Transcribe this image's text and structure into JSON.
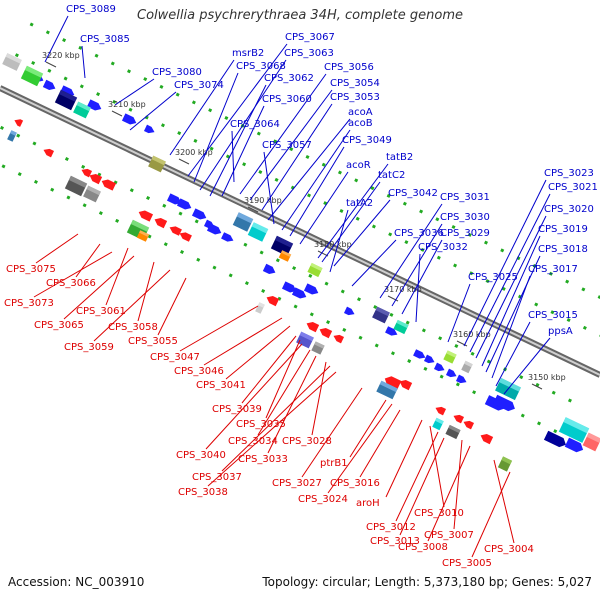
{
  "title": "Colwellia psychrerythraea 34H, complete genome",
  "accession": "Accession: NC_003910",
  "topology": "Topology: circular; Length: 5,373,180 bp; Genes: 5,027",
  "colors": {
    "forward_label": "#0000cc",
    "reverse_label": "#dd0000",
    "backbone": "#777777",
    "dots": "#22aa22"
  },
  "scale_ticks": [
    "3220 kbp",
    "3210 kbp",
    "3200 kbp",
    "3190 kbp",
    "3180 kbp",
    "3170 kbp",
    "3160 kbp",
    "3150 kbp"
  ],
  "forward_labels": [
    "CPS_3089",
    "CPS_3085",
    "CPS_3080",
    "CPS_3074",
    "msrB2",
    "CPS_3067",
    "CPS_3068",
    "CPS_3063",
    "CPS_3062",
    "CPS_3060",
    "CPS_3064",
    "CPS_3056",
    "CPS_3054",
    "CPS_3053",
    "acoA",
    "acoB",
    "CPS_3057",
    "CPS_3049",
    "acoR",
    "tatB2",
    "tatC2",
    "CPS_3042",
    "tatA2",
    "CPS_3036",
    "CPS_3031",
    "CPS_3030",
    "CPS_3029",
    "CPS_3032",
    "CPS_3025",
    "CPS_3023",
    "CPS_3021",
    "CPS_3020",
    "CPS_3019",
    "CPS_3018",
    "CPS_3017",
    "CPS_3015",
    "ppsA"
  ],
  "reverse_labels": [
    "CPS_3075",
    "CPS_3066",
    "CPS_3073",
    "CPS_3061",
    "CPS_3065",
    "CPS_3058",
    "CPS_3059",
    "CPS_3055",
    "CPS_3047",
    "CPS_3046",
    "CPS_3041",
    "CPS_3039",
    "CPS_3035",
    "CPS_3040",
    "CPS_3034",
    "CPS_3033",
    "CPS_3028",
    "CPS_3037",
    "CPS_3038",
    "CPS_3027",
    "ptrB1",
    "CPS_3024",
    "CPS_3016",
    "aroH",
    "CPS_3010",
    "CPS_3012",
    "CPS_3013",
    "CPS_3007",
    "CPS_3008",
    "CPS_3004",
    "CPS_3005"
  ]
}
